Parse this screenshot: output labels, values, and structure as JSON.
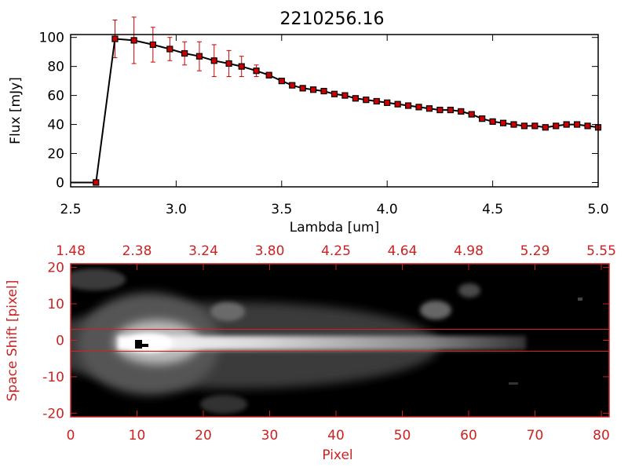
{
  "chart_data": [
    {
      "type": "line",
      "title": "2210256.16",
      "xlabel": "Lambda [um]",
      "ylabel": "Flux [mJy]",
      "xlim": [
        2.5,
        5.0
      ],
      "ylim": [
        -3,
        102
      ],
      "x_ticks": [
        "2.5",
        "3.0",
        "3.5",
        "4.0",
        "4.5",
        "5.0"
      ],
      "x_tick_values": [
        2.5,
        3.0,
        3.5,
        4.0,
        4.5,
        5.0
      ],
      "y_ticks": [
        "0",
        "20",
        "40",
        "60",
        "80",
        "100"
      ],
      "y_tick_values": [
        0,
        20,
        40,
        60,
        80,
        100
      ],
      "line_color": "#000000",
      "marker_color": "#cc0000",
      "errorbar_color": "#cc0000",
      "series": [
        {
          "x": [
            2.5,
            2.62,
            2.71,
            2.8,
            2.89,
            2.97,
            3.04,
            3.11,
            3.18,
            3.25,
            3.31,
            3.38,
            3.44,
            3.5,
            3.55,
            3.6,
            3.65,
            3.7,
            3.75,
            3.8,
            3.85,
            3.9,
            3.95,
            4.0,
            4.05,
            4.1,
            4.15,
            4.2,
            4.25,
            4.3,
            4.35,
            4.4,
            4.45,
            4.5,
            4.55,
            4.6,
            4.65,
            4.7,
            4.75,
            4.8,
            4.85,
            4.9,
            4.95,
            5.0
          ],
          "y": [
            0,
            0,
            99,
            98,
            95,
            92,
            89,
            87,
            84,
            82,
            80,
            77,
            74,
            70,
            67,
            65,
            64,
            63,
            61,
            60,
            58,
            57,
            56,
            55,
            54,
            53,
            52,
            51,
            50,
            50,
            49,
            47,
            44,
            42,
            41,
            40,
            39,
            39,
            38,
            39,
            40,
            40,
            39,
            38
          ],
          "err": [
            0,
            0,
            13,
            16,
            12,
            8,
            8,
            10,
            11,
            9,
            7,
            4,
            2,
            1,
            1,
            1,
            1,
            1,
            1,
            1,
            1,
            1,
            1,
            1,
            1,
            1,
            1,
            1,
            1,
            1,
            1,
            1,
            1,
            1,
            1,
            1,
            1,
            1,
            1,
            1,
            1,
            1,
            1,
            1
          ],
          "markers_from_index": 1
        }
      ]
    },
    {
      "type": "heatmap",
      "xlabel": "Pixel",
      "ylabel": "Space Shift [pixel]",
      "xlim": [
        0,
        80
      ],
      "ylim": [
        -21,
        21
      ],
      "x_ticks": [
        "0",
        "10",
        "20",
        "30",
        "40",
        "50",
        "60",
        "70",
        "80"
      ],
      "x_tick_values": [
        0,
        10,
        20,
        30,
        40,
        50,
        60,
        70,
        80
      ],
      "y_ticks": [
        "-20",
        "-10",
        "0",
        "10",
        "20"
      ],
      "y_tick_values": [
        -20,
        -10,
        0,
        10,
        20
      ],
      "top_ticks": [
        "1.48",
        "2.38",
        "3.24",
        "3.80",
        "4.25",
        "4.64",
        "4.98",
        "5.29",
        "5.55"
      ],
      "top_tick_values": [
        0,
        10,
        20,
        30,
        40,
        50,
        60,
        70,
        80
      ],
      "extraction_window": [
        -3,
        3
      ],
      "axis_color": "#cc2222",
      "colormap": "grayscale",
      "background": "#000000"
    }
  ]
}
